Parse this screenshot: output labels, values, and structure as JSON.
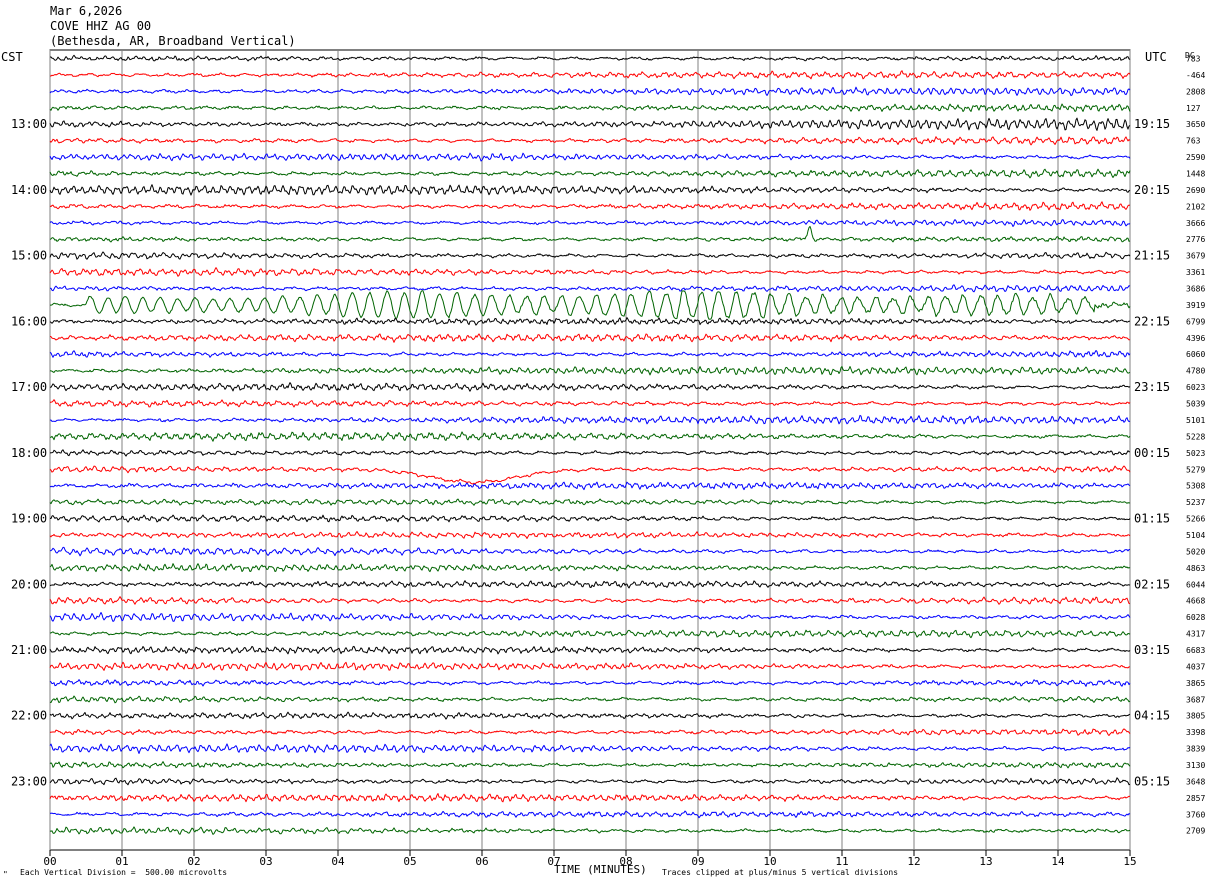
{
  "header": {
    "date": "Mar 6,2026",
    "station": "COVE HHZ AG 00",
    "location": "(Bethesda, AR, Broadband Vertical)"
  },
  "axes": {
    "left_label": "CST",
    "right_label": "UTC",
    "dc_label": "DC",
    "x_title": "TIME (MINUTES)"
  },
  "footer": {
    "scale_note": "Each Vertical Division =  500.00 microvolts",
    "clip_note": "Traces clipped at plus/minus 5 vertical divisions",
    "corner_mark": "\""
  },
  "chart_data": {
    "type": "line",
    "title": "COVE HHZ AG 00",
    "xlabel": "TIME (MINUTES)",
    "xlim": [
      0,
      15
    ],
    "x_ticks": [
      "00",
      "01",
      "02",
      "03",
      "04",
      "05",
      "06",
      "07",
      "08",
      "09",
      "10",
      "11",
      "12",
      "13",
      "14",
      "15"
    ],
    "rows_per_hour": 4,
    "trace_colors": [
      "#000000",
      "#ff0000",
      "#0000ff",
      "#006400"
    ],
    "cst_hour_labels": [
      "13:00",
      "14:00",
      "15:00",
      "16:00",
      "17:00",
      "18:00",
      "19:00",
      "20:00",
      "21:00",
      "22:00",
      "23:00"
    ],
    "utc_hour_labels": [
      "19:15",
      "20:15",
      "21:15",
      "22:15",
      "23:15",
      "00:15",
      "01:15",
      "02:15",
      "03:15",
      "04:15",
      "05:15"
    ],
    "dc_offsets": [
      "783",
      "-464",
      "2808",
      "127",
      "3650",
      "763",
      "2590",
      "1448",
      "2690",
      "2102",
      "3666",
      "2776",
      "3679",
      "3361",
      "3686",
      "3919",
      "6799",
      "4396",
      "6060",
      "4780",
      "6023",
      "5039",
      "5101",
      "5228",
      "5023",
      "5279",
      "5308",
      "5237",
      "5266",
      "5104",
      "5020",
      "4863",
      "6044",
      "4668",
      "6028",
      "4317",
      "6683",
      "4037",
      "3865",
      "3687",
      "3805",
      "3398",
      "3839",
      "3130",
      "3648",
      "2857",
      "3760",
      "2709"
    ],
    "events": [
      {
        "row": 11,
        "minute": 10.55,
        "description": "spike"
      },
      {
        "row": 15,
        "minute_start": 0.5,
        "minute_end": 14.5,
        "description": "large amplitude oscillation"
      },
      {
        "row": 25,
        "minute": 5.9,
        "description": "bump"
      }
    ]
  }
}
